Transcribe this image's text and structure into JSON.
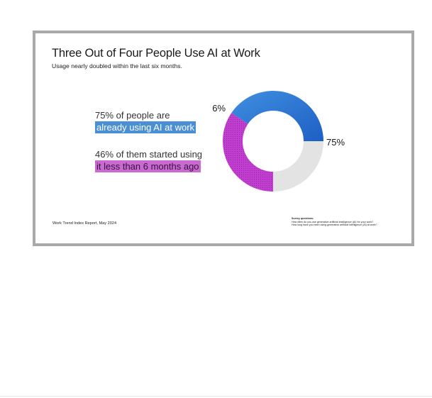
{
  "slide": {
    "title": "Three Out of Four People Use AI at Work",
    "subtitle": "Usage nearly doubled within the last six months."
  },
  "stats": {
    "stat1_line1": "75% of people are",
    "stat1_line2": "already using AI at work",
    "stat2_line1": "46% of them started using",
    "stat2_line2": "it less than 6 months ago"
  },
  "footer": {
    "source": "Work Trend Index Report, May 2024",
    "survey_heading": "Survey questions:",
    "survey_q1": "How often do you use generative artificial intelligence (AI) for your work?",
    "survey_q2": "How long have you been using generative artificial intelligence (AI) at work?"
  },
  "colors": {
    "blue": "#2f7ad6",
    "purple": "#c13fcf",
    "gray": "#e3e3e3"
  },
  "chart_data": {
    "type": "pie",
    "donut": true,
    "series": [
      {
        "label": "75%",
        "value": 75,
        "segments": [
          {
            "value": 40.5,
            "color": "#2f7ad6"
          },
          {
            "value": 34.5,
            "color": "#c13fcf"
          }
        ]
      },
      {
        "value": 25,
        "color": "#e3e3e3"
      }
    ],
    "inner_label": "46%",
    "outer_label": "75%"
  }
}
